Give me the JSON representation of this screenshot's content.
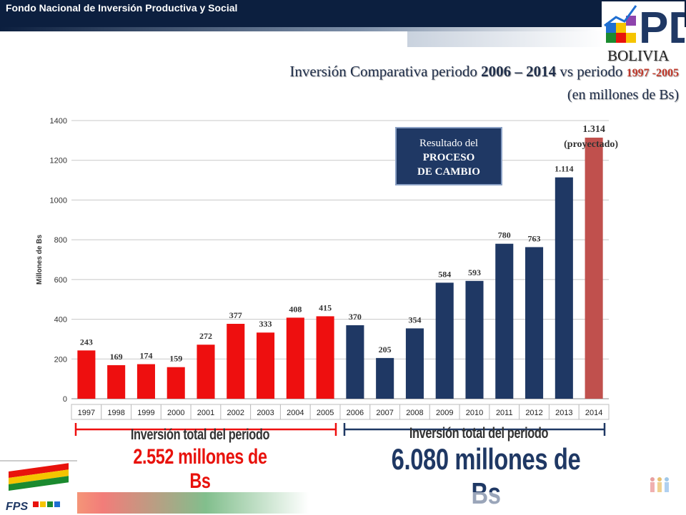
{
  "header": {
    "org_name": "Fondo Nacional de Inversión Productiva y Social",
    "country": "BOLIVIA",
    "logo_text": "PD"
  },
  "title": {
    "part1": "Inversión Comparativa periodo ",
    "years1": "2006 – 2014",
    "part2": " vs periodo ",
    "years2": "1997 -2005",
    "subtitle": "(en millones de Bs)"
  },
  "callout": {
    "line1": "Resultado del",
    "line2": "PROCESO",
    "line3": "DE CAMBIO"
  },
  "periods": {
    "first_label": "Inversión total del periodo",
    "first_value": "2.552 millones  de Bs",
    "second_label": "Inversión total del periodo",
    "second_value": "6.080 millones de Bs"
  },
  "footer": {
    "fps_logo_text": "FPS"
  },
  "colors": {
    "period1": "#ee0f0f",
    "period2": "#1f3864",
    "projected": "#c0504d"
  },
  "chart_data": {
    "type": "bar",
    "categories": [
      "1997",
      "1998",
      "1999",
      "2000",
      "2001",
      "2002",
      "2003",
      "2004",
      "2005",
      "2006",
      "2007",
      "2008",
      "2009",
      "2010",
      "2011",
      "2012",
      "2013",
      "2014"
    ],
    "values": [
      243,
      169,
      174,
      159,
      272,
      377,
      333,
      408,
      415,
      370,
      205,
      354,
      584,
      593,
      780,
      763,
      1114,
      1314
    ],
    "data_labels": [
      "243",
      "169",
      "174",
      "159",
      "272",
      "377",
      "333",
      "408",
      "415",
      "370",
      "205",
      "354",
      "584",
      "593",
      "780",
      "763",
      "1.114",
      "1.314"
    ],
    "projected_note": "(proyectado)",
    "ylabel": "Millones de Bs",
    "ylim": [
      0,
      1400
    ],
    "yticks": [
      "0",
      "200",
      "400",
      "600",
      "800",
      "1000",
      "1200",
      "1400"
    ],
    "grid": true,
    "colors": [
      "#ee0f0f",
      "#ee0f0f",
      "#ee0f0f",
      "#ee0f0f",
      "#ee0f0f",
      "#ee0f0f",
      "#ee0f0f",
      "#ee0f0f",
      "#ee0f0f",
      "#1f3864",
      "#1f3864",
      "#1f3864",
      "#1f3864",
      "#1f3864",
      "#1f3864",
      "#1f3864",
      "#1f3864",
      "#c0504d"
    ]
  }
}
